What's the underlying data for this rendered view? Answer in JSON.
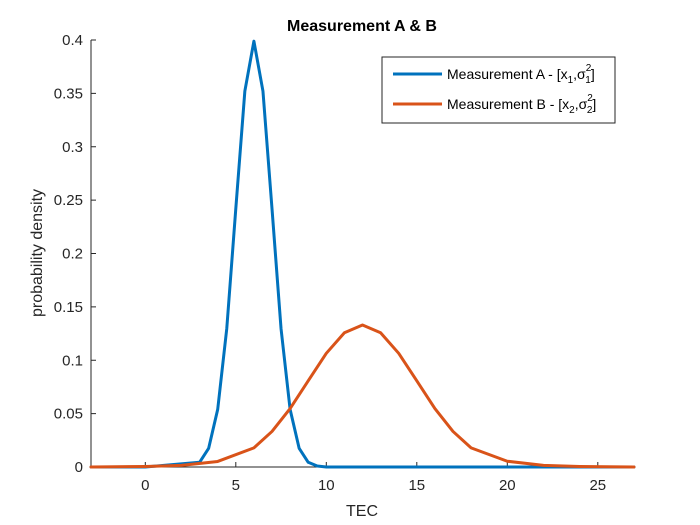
{
  "chart_data": {
    "type": "line",
    "title": "Measurement A & B",
    "xlabel": "TEC",
    "ylabel": "probability density",
    "xlim": [
      -3,
      27
    ],
    "ylim": [
      0,
      0.4
    ],
    "xticks": [
      0,
      5,
      10,
      15,
      20,
      25
    ],
    "xtick_labels": [
      "0",
      "5",
      "10",
      "15",
      "20",
      "25"
    ],
    "yticks": [
      0,
      0.05,
      0.1,
      0.15,
      0.2,
      0.25,
      0.3,
      0.35,
      0.4
    ],
    "ytick_labels": [
      "0",
      "0.05",
      "0.1",
      "0.15",
      "0.2",
      "0.25",
      "0.3",
      "0.35",
      "0.4"
    ],
    "grid": false,
    "legend_position": "top-right",
    "series": [
      {
        "name": "Measurement A - [x_1,σ_1^2]",
        "legend": {
          "base": "Measurement A - [x",
          "sub1": "1",
          "mid": ",σ",
          "sup": "2",
          "sub2": "1",
          "end": "]"
        },
        "color": "#0072BD",
        "x": [
          -3,
          0,
          3,
          3.5,
          4,
          4.5,
          5,
          5.5,
          6,
          6.5,
          7,
          7.5,
          8,
          8.5,
          9,
          9.5,
          10,
          10.5,
          11,
          14,
          27
        ],
        "y": [
          0,
          0,
          0.0044,
          0.0175,
          0.054,
          0.1295,
          0.242,
          0.3521,
          0.3989,
          0.3521,
          0.242,
          0.1295,
          0.054,
          0.0175,
          0.0044,
          0.0009,
          0,
          0,
          0,
          0,
          0
        ]
      },
      {
        "name": "Measurement B - [x_2,σ_2^2]",
        "legend": {
          "base": "Measurement B - [x",
          "sub1": "2",
          "mid": ",σ",
          "sup": "2",
          "sub2": "2",
          "end": "]"
        },
        "color": "#D95319",
        "x": [
          -3,
          0,
          2,
          4,
          6,
          7,
          8,
          9,
          10,
          11,
          12,
          13,
          14,
          15,
          16,
          17,
          18,
          20,
          22,
          24,
          27
        ],
        "y": [
          0,
          0.0005,
          0.0015,
          0.0052,
          0.0179,
          0.0333,
          0.0547,
          0.0807,
          0.1065,
          0.1258,
          0.133,
          0.1258,
          0.1065,
          0.0807,
          0.0547,
          0.0333,
          0.0179,
          0.0054,
          0.0015,
          0.0005,
          0
        ]
      }
    ]
  }
}
